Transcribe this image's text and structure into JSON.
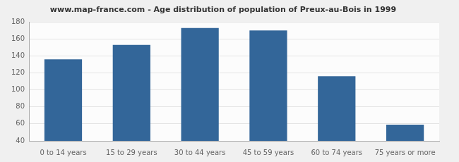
{
  "chart_data": {
    "type": "bar",
    "title": "www.map-france.com - Age distribution of population of Preux-au-Bois in 1999",
    "categories": [
      "0 to 14 years",
      "15 to 29 years",
      "30 to 44 years",
      "45 to 59 years",
      "60 to 74 years",
      "75 years or more"
    ],
    "values": [
      136,
      153,
      173,
      170,
      116,
      59
    ],
    "color": "#336699",
    "ylim": [
      40,
      180
    ],
    "yticks": [
      40,
      60,
      80,
      100,
      120,
      140,
      160,
      180
    ],
    "grid": true
  }
}
